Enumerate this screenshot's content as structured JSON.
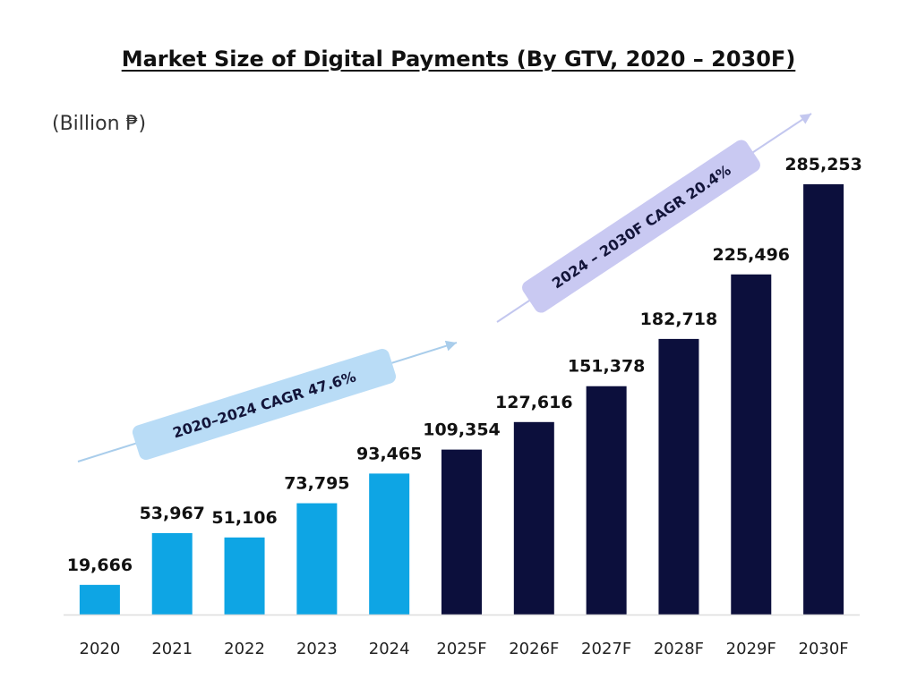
{
  "chart_data": {
    "type": "bar",
    "title": "Market Size of Digital Payments (By GTV, 2020 – 2030F)",
    "unit_label": "(Billion ₱)",
    "categories": [
      "2020",
      "2021",
      "2022",
      "2023",
      "2024",
      "2025F",
      "2026F",
      "2027F",
      "2028F",
      "2029F",
      "2030F"
    ],
    "values": [
      19666,
      53967,
      51106,
      73795,
      93465,
      109354,
      127616,
      151378,
      182718,
      225496,
      285253
    ],
    "value_labels": [
      "19,666",
      "53,967",
      "51,106",
      "73,795",
      "93,465",
      "109,354",
      "127,616",
      "151,378",
      "182,718",
      "225,496",
      "285,253"
    ],
    "series_colors": {
      "actual": "#0ea5e4",
      "forecast": "#0c0f3c"
    },
    "forecast_start_index": 5,
    "annotations": [
      {
        "text": "2020–2024 CAGR 47.6%",
        "from_index": 0,
        "to_index": 4,
        "fill": "#b9dcf6"
      },
      {
        "text": "2024 – 2030F CAGR 20.4%",
        "from_index": 5,
        "to_index": 9,
        "fill": "#c9c9f2"
      }
    ],
    "ylim": [
      0,
      285253
    ],
    "grid": false,
    "legend": "none"
  }
}
